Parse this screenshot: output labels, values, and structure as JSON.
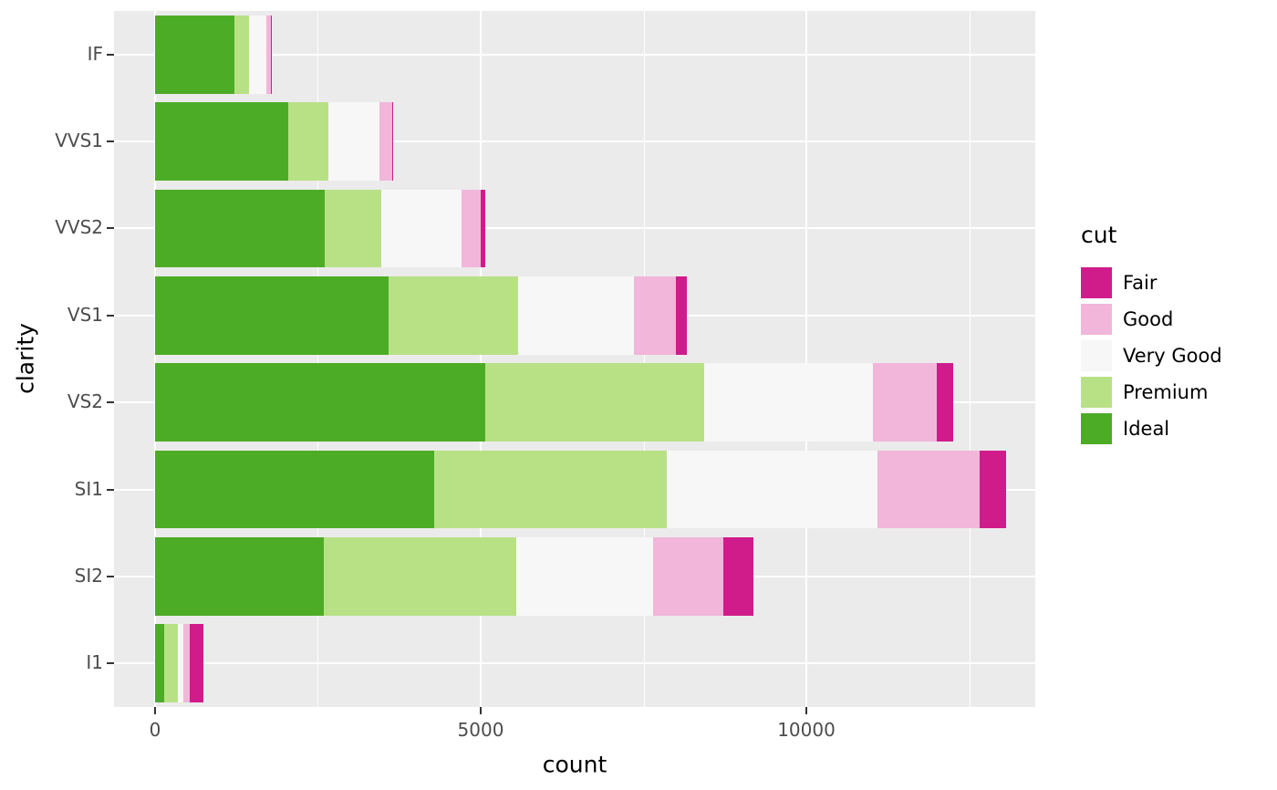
{
  "chart_data": {
    "type": "bar",
    "orientation": "horizontal",
    "stacked": true,
    "title": "",
    "xlabel": "count",
    "ylabel": "clarity",
    "categories": [
      "IF",
      "VVS1",
      "VVS2",
      "VS1",
      "VS2",
      "SI1",
      "SI2",
      "I1"
    ],
    "series": [
      {
        "name": "Ideal",
        "color": "#4DAC26",
        "values": [
          1212,
          2047,
          2606,
          3589,
          5071,
          4282,
          2598,
          146
        ]
      },
      {
        "name": "Premium",
        "color": "#B8E186",
        "values": [
          230,
          616,
          870,
          1989,
          3357,
          3575,
          2949,
          205
        ]
      },
      {
        "name": "Very Good",
        "color": "#F7F7F7",
        "values": [
          268,
          789,
          1235,
          1775,
          2591,
          3240,
          2100,
          84
        ]
      },
      {
        "name": "Good",
        "color": "#F1B6DA",
        "values": [
          71,
          186,
          286,
          648,
          978,
          1560,
          1081,
          96
        ]
      },
      {
        "name": "Fair",
        "color": "#D01C8B",
        "values": [
          9,
          17,
          69,
          170,
          261,
          408,
          466,
          210
        ]
      }
    ],
    "x_ticks": [
      0,
      5000,
      10000
    ],
    "x_tick_labels": [
      "0",
      "5000",
      "10000"
    ],
    "x_minor_ticks": [
      2500,
      7500,
      12500
    ],
    "xlim": [
      -630,
      13515
    ],
    "legend": {
      "title": "cut",
      "position": "right",
      "entries": [
        {
          "label": "Fair",
          "color": "#D01C8B"
        },
        {
          "label": "Good",
          "color": "#F1B6DA"
        },
        {
          "label": "Very Good",
          "color": "#F7F7F7"
        },
        {
          "label": "Premium",
          "color": "#B8E186"
        },
        {
          "label": "Ideal",
          "color": "#4DAC26"
        }
      ]
    },
    "panel_background": "#EBEBEB",
    "gridline_color": "#FFFFFF"
  }
}
